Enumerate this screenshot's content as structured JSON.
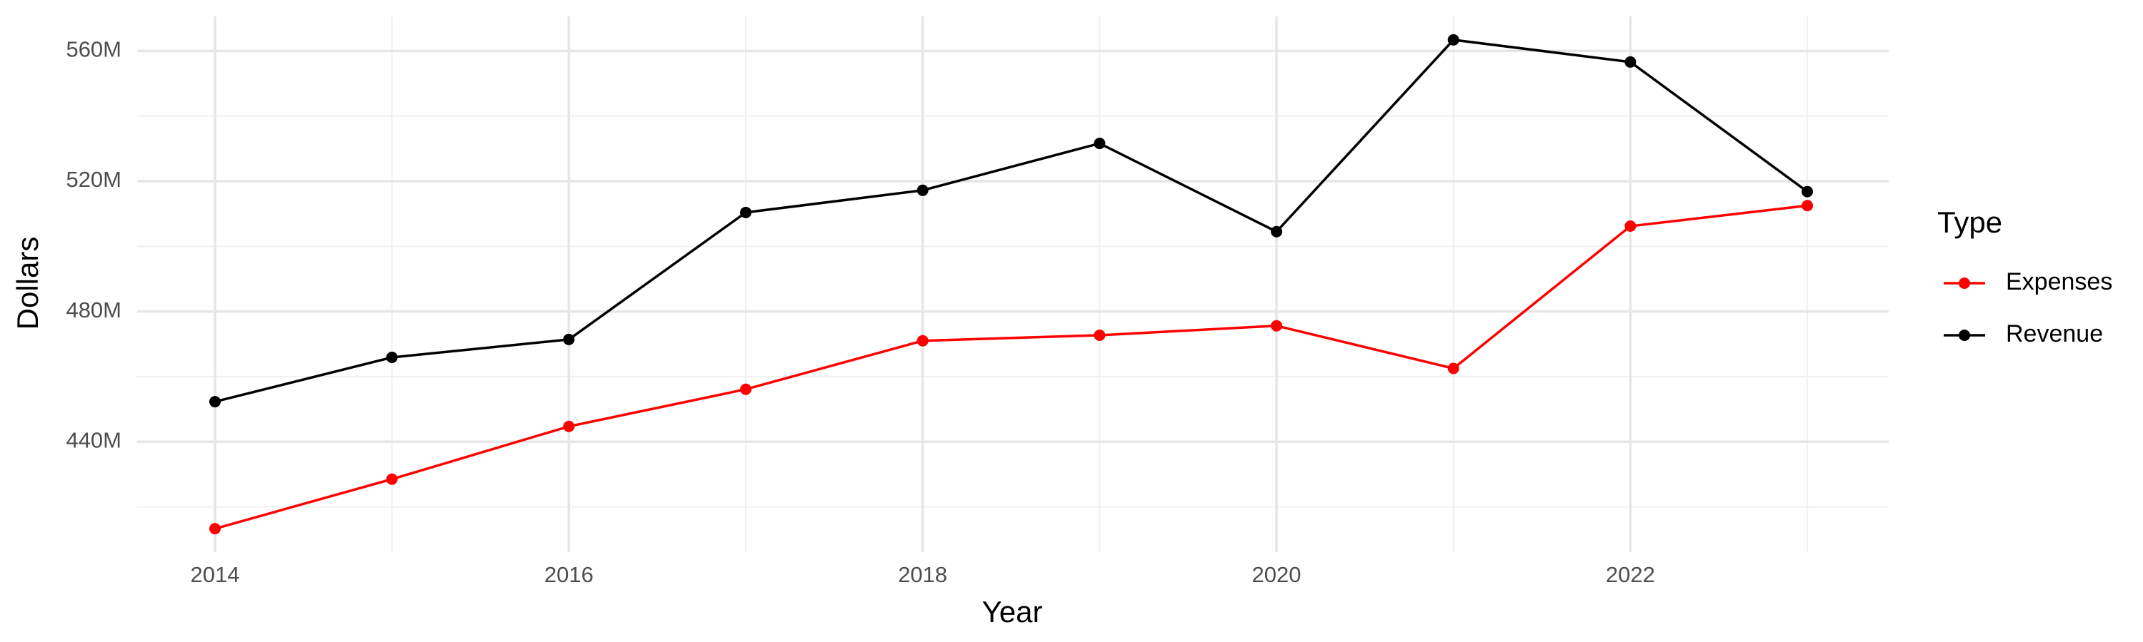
{
  "chart_data": {
    "type": "line",
    "x_label": "Year",
    "y_label": "Dollars",
    "legend_title": "Type",
    "x": [
      2014,
      2015,
      2016,
      2017,
      2018,
      2019,
      2020,
      2021,
      2022,
      2023
    ],
    "series": [
      {
        "name": "Expenses",
        "color": "#ff0000",
        "values": [
          413300000,
          428500000,
          444700000,
          456100000,
          471000000,
          472700000,
          475600000,
          462500000,
          506200000,
          512500000
        ]
      },
      {
        "name": "Revenue",
        "color": "#000000",
        "values": [
          452300000,
          465900000,
          471400000,
          510400000,
          517200000,
          531600000,
          504500000,
          563400000,
          556600000,
          516800000
        ]
      }
    ],
    "xlim": [
      2013.56,
      2023.46
    ],
    "xticks": [
      2014,
      2016,
      2018,
      2020,
      2022
    ],
    "xminor": [
      2015,
      2017,
      2019,
      2021,
      2023
    ],
    "ylim": [
      406100000,
      570600000
    ],
    "yticks": [
      {
        "value": 440000000,
        "label": "440M"
      },
      {
        "value": 480000000,
        "label": "480M"
      },
      {
        "value": 520000000,
        "label": "520M"
      },
      {
        "value": 560000000,
        "label": "560M"
      }
    ],
    "yminor": [
      420000000,
      460000000,
      500000000,
      540000000
    ],
    "grid": true,
    "legend": "right"
  }
}
